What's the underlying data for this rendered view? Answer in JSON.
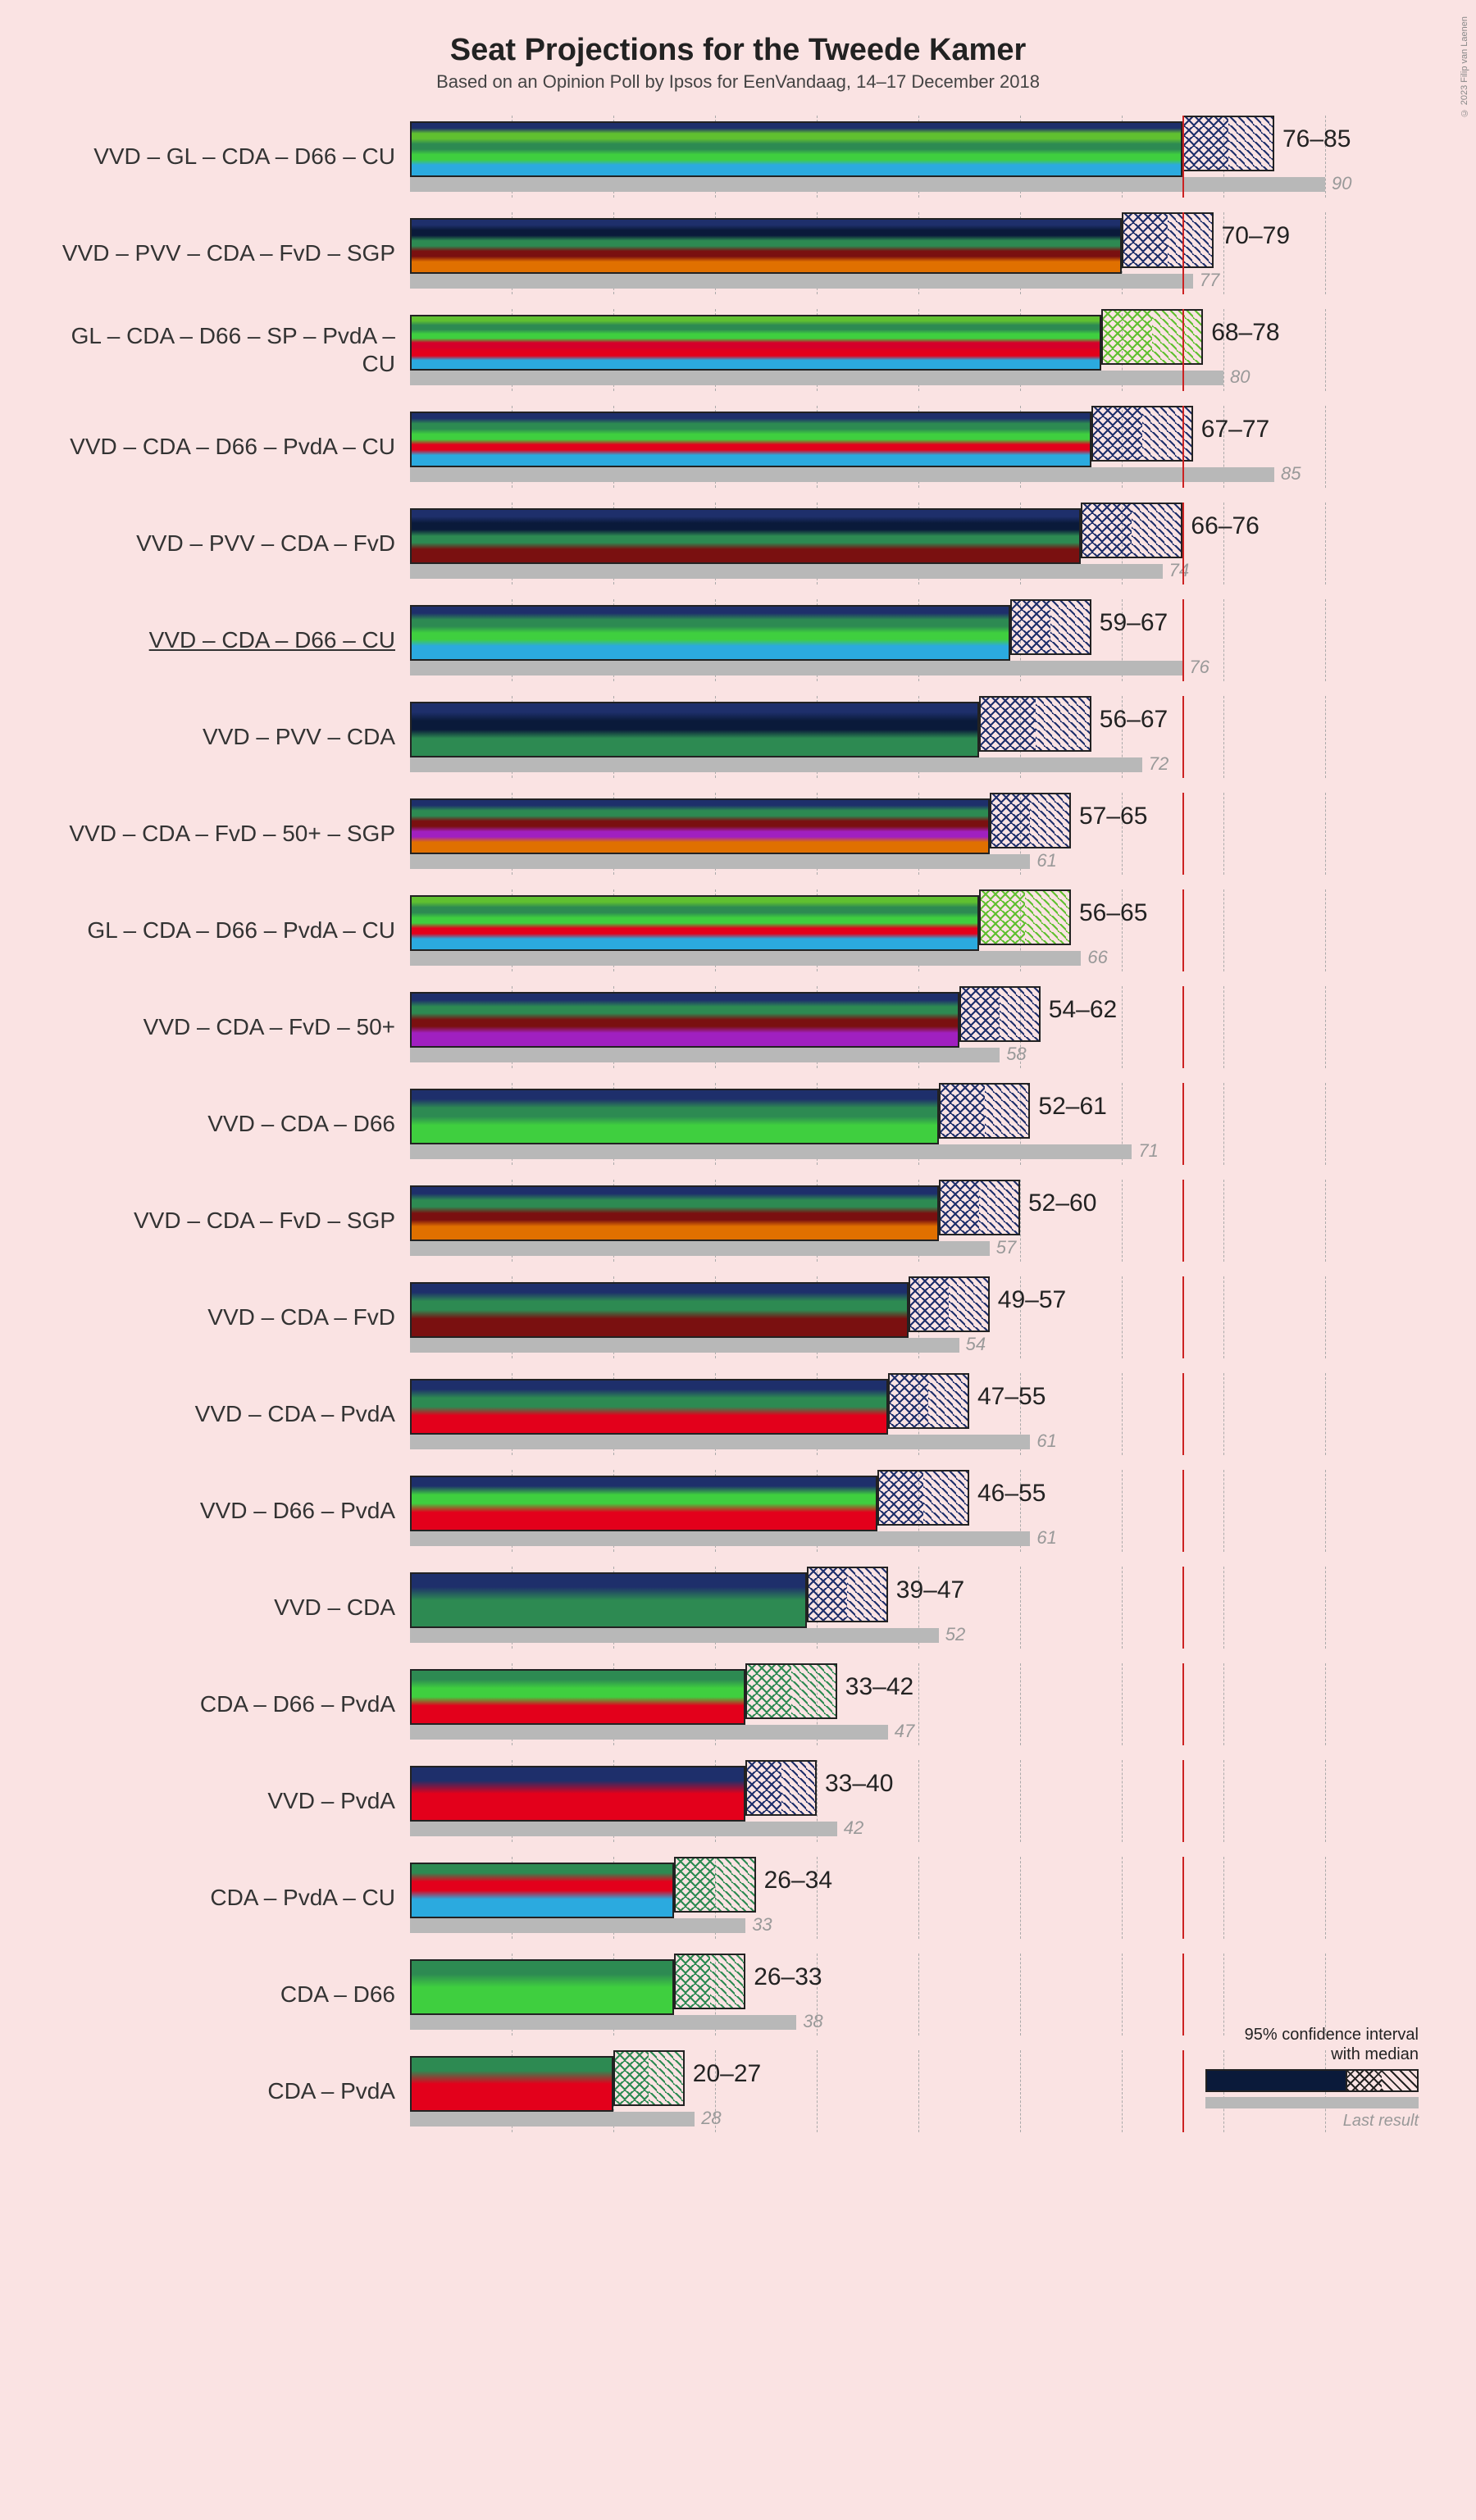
{
  "title": "Seat Projections for the Tweede Kamer",
  "subtitle": "Based on an Opinion Poll by Ipsos for EenVandaag, 14–17 December 2018",
  "credit": "© 2023 Filip van Laenen",
  "chart": {
    "type": "bar",
    "x_max": 100,
    "grid_step": 10,
    "majority_line": 76,
    "grid_color": "#aaaaaa",
    "majority_color": "#cc2222",
    "background": "#fae3e3",
    "bar_border": "#222222",
    "last_result_color": "#b8b8b8",
    "label_fontsize": 28,
    "value_fontsize": 30,
    "last_fontsize_italic": 22,
    "party_colors": {
      "VVD": "#1e2f6b",
      "GL": "#60c030",
      "CDA": "#2d8a52",
      "D66": "#3fcf3f",
      "CU": "#2baadf",
      "PVV": "#0a1a3a",
      "FvD": "#7a1010",
      "SGP": "#e07000",
      "SP": "#d4002a",
      "PvdA": "#e3001b",
      "50+": "#a020c0"
    }
  },
  "legend": {
    "ci_label": "95% confidence interval\nwith median",
    "last_label": "Last result"
  },
  "coalitions": [
    {
      "label": "VVD – GL – CDA – D66 – CU",
      "parties": [
        "VVD",
        "GL",
        "CDA",
        "D66",
        "CU"
      ],
      "low": 76,
      "high": 85,
      "last": 90,
      "underline": false
    },
    {
      "label": "VVD – PVV – CDA – FvD – SGP",
      "parties": [
        "VVD",
        "PVV",
        "CDA",
        "FvD",
        "SGP"
      ],
      "low": 70,
      "high": 79,
      "last": 77,
      "underline": false
    },
    {
      "label": "GL – CDA – D66 – SP – PvdA – CU",
      "parties": [
        "GL",
        "CDA",
        "D66",
        "SP",
        "PvdA",
        "CU"
      ],
      "low": 68,
      "high": 78,
      "last": 80,
      "underline": false
    },
    {
      "label": "VVD – CDA – D66 – PvdA – CU",
      "parties": [
        "VVD",
        "CDA",
        "D66",
        "PvdA",
        "CU"
      ],
      "low": 67,
      "high": 77,
      "last": 85,
      "underline": false
    },
    {
      "label": "VVD – PVV – CDA – FvD",
      "parties": [
        "VVD",
        "PVV",
        "CDA",
        "FvD"
      ],
      "low": 66,
      "high": 76,
      "last": 74,
      "underline": false
    },
    {
      "label": "VVD – CDA – D66 – CU",
      "parties": [
        "VVD",
        "CDA",
        "D66",
        "CU"
      ],
      "low": 59,
      "high": 67,
      "last": 76,
      "underline": true
    },
    {
      "label": "VVD – PVV – CDA",
      "parties": [
        "VVD",
        "PVV",
        "CDA"
      ],
      "low": 56,
      "high": 67,
      "last": 72,
      "underline": false
    },
    {
      "label": "VVD – CDA – FvD – 50+ – SGP",
      "parties": [
        "VVD",
        "CDA",
        "FvD",
        "50+",
        "SGP"
      ],
      "low": 57,
      "high": 65,
      "last": 61,
      "underline": false
    },
    {
      "label": "GL – CDA – D66 – PvdA – CU",
      "parties": [
        "GL",
        "CDA",
        "D66",
        "PvdA",
        "CU"
      ],
      "low": 56,
      "high": 65,
      "last": 66,
      "underline": false
    },
    {
      "label": "VVD – CDA – FvD – 50+",
      "parties": [
        "VVD",
        "CDA",
        "FvD",
        "50+"
      ],
      "low": 54,
      "high": 62,
      "last": 58,
      "underline": false
    },
    {
      "label": "VVD – CDA – D66",
      "parties": [
        "VVD",
        "CDA",
        "D66"
      ],
      "low": 52,
      "high": 61,
      "last": 71,
      "underline": false
    },
    {
      "label": "VVD – CDA – FvD – SGP",
      "parties": [
        "VVD",
        "CDA",
        "FvD",
        "SGP"
      ],
      "low": 52,
      "high": 60,
      "last": 57,
      "underline": false
    },
    {
      "label": "VVD – CDA – FvD",
      "parties": [
        "VVD",
        "CDA",
        "FvD"
      ],
      "low": 49,
      "high": 57,
      "last": 54,
      "underline": false
    },
    {
      "label": "VVD – CDA – PvdA",
      "parties": [
        "VVD",
        "CDA",
        "PvdA"
      ],
      "low": 47,
      "high": 55,
      "last": 61,
      "underline": false
    },
    {
      "label": "VVD – D66 – PvdA",
      "parties": [
        "VVD",
        "D66",
        "PvdA"
      ],
      "low": 46,
      "high": 55,
      "last": 61,
      "underline": false
    },
    {
      "label": "VVD – CDA",
      "parties": [
        "VVD",
        "CDA"
      ],
      "low": 39,
      "high": 47,
      "last": 52,
      "underline": false
    },
    {
      "label": "CDA – D66 – PvdA",
      "parties": [
        "CDA",
        "D66",
        "PvdA"
      ],
      "low": 33,
      "high": 42,
      "last": 47,
      "underline": false
    },
    {
      "label": "VVD – PvdA",
      "parties": [
        "VVD",
        "PvdA"
      ],
      "low": 33,
      "high": 40,
      "last": 42,
      "underline": false
    },
    {
      "label": "CDA – PvdA – CU",
      "parties": [
        "CDA",
        "PvdA",
        "CU"
      ],
      "low": 26,
      "high": 34,
      "last": 33,
      "underline": false
    },
    {
      "label": "CDA – D66",
      "parties": [
        "CDA",
        "D66"
      ],
      "low": 26,
      "high": 33,
      "last": 38,
      "underline": false
    },
    {
      "label": "CDA – PvdA",
      "parties": [
        "CDA",
        "PvdA"
      ],
      "low": 20,
      "high": 27,
      "last": 28,
      "underline": false
    }
  ]
}
